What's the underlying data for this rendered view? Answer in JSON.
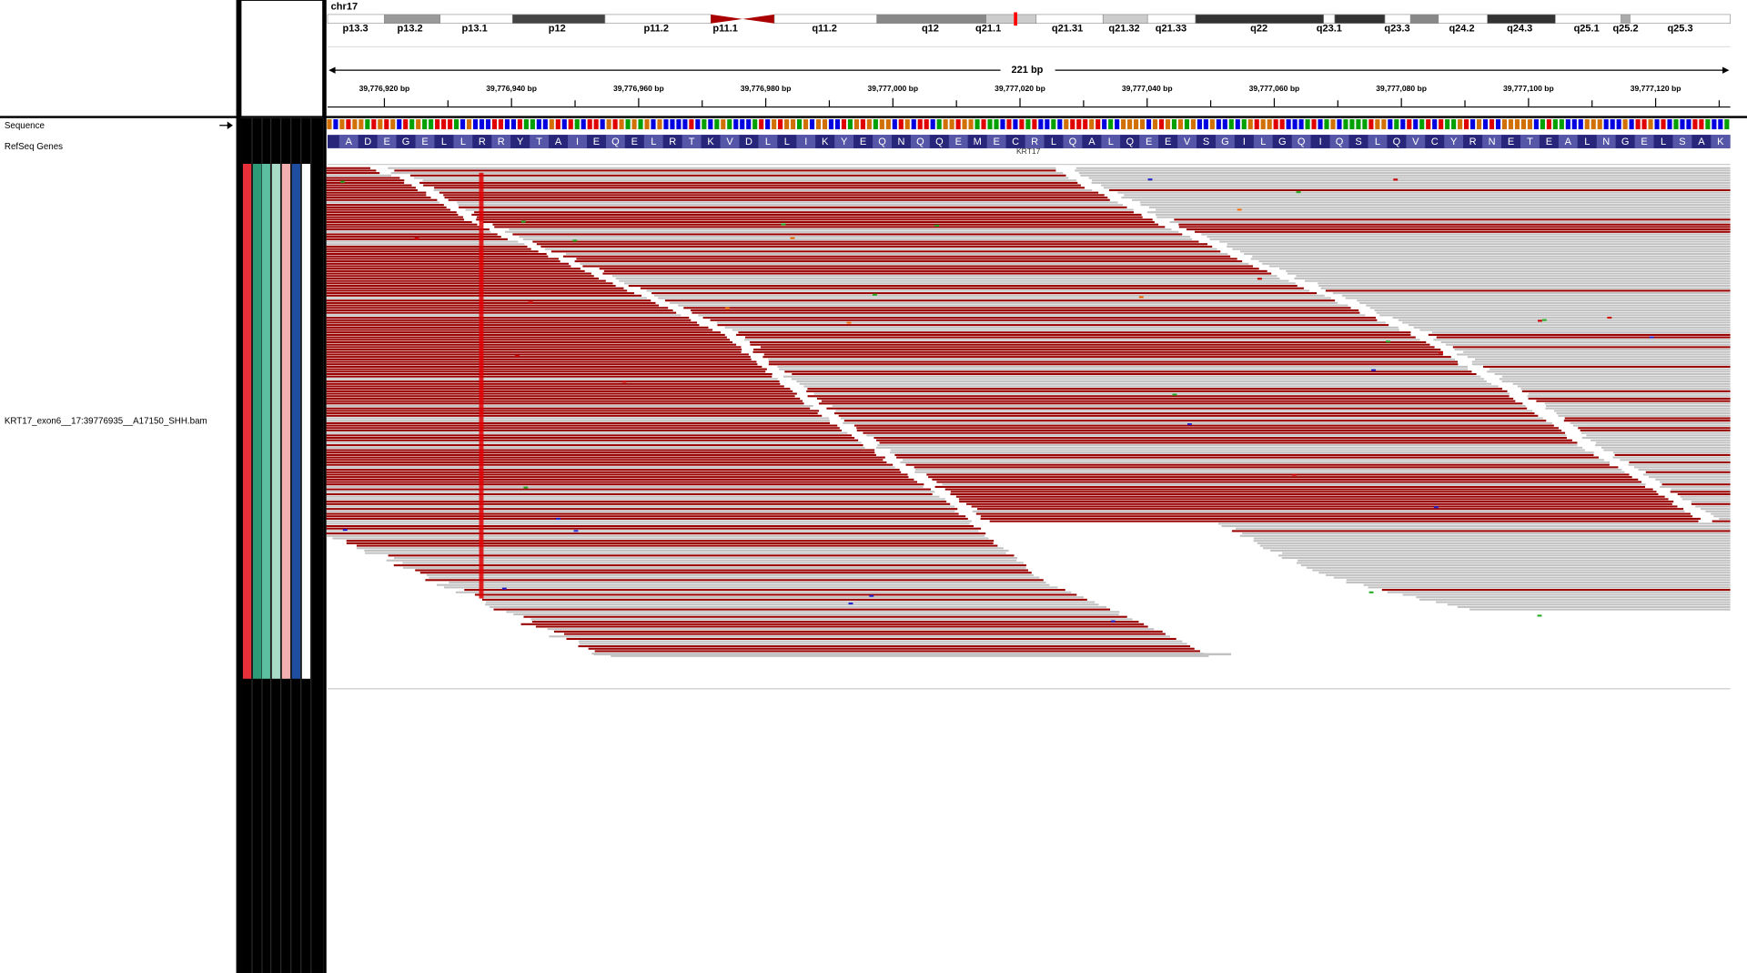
{
  "chromosome": "chr17",
  "cytobands": [
    "p13.3",
    "p13.2",
    "p13.1",
    "p12",
    "p11.2",
    "p11.1",
    "q11.2",
    "q12",
    "q21.1",
    "q21.31",
    "q21.32",
    "q21.33",
    "q22",
    "q23.1",
    "q23.3",
    "q24.2",
    "q24.3",
    "q25.1",
    "q25.2",
    "q25.3"
  ],
  "span": "221 bp",
  "ruler_ticks": [
    "39,776,920 bp",
    "39,776,940 bp",
    "39,776,960 bp",
    "39,776,980 bp",
    "39,777,000 bp",
    "39,777,020 bp",
    "39,777,040 bp",
    "39,777,060 bp",
    "39,777,080 bp",
    "39,777,100 bp",
    "39,777,120 bp"
  ],
  "tracks": {
    "sequence": "Sequence",
    "refseq": "RefSeq Genes",
    "bam": "KRT17_exon6__17:39776935__A17150_SHH.bam"
  },
  "amino_acids": [
    "A",
    "D",
    "E",
    "G",
    "E",
    "L",
    "L",
    "R",
    "R",
    "Y",
    "T",
    "A",
    "I",
    "E",
    "Q",
    "E",
    "L",
    "R",
    "T",
    "K",
    "V",
    "D",
    "L",
    "L",
    "I",
    "K",
    "Y",
    "E",
    "Q",
    "N",
    "Q",
    "Q",
    "E",
    "M",
    "E",
    "C",
    "R",
    "L",
    "Q",
    "A",
    "L",
    "Q",
    "E",
    "E",
    "V",
    "S",
    "G",
    "I",
    "L",
    "G",
    "Q",
    "I",
    "Q",
    "S",
    "L",
    "Q",
    "V",
    "C",
    "Y",
    "R",
    "N",
    "E",
    "T",
    "E",
    "A",
    "L",
    "N",
    "G",
    "E",
    "L",
    "S",
    "A",
    "K"
  ],
  "gene": "KRT17"
}
